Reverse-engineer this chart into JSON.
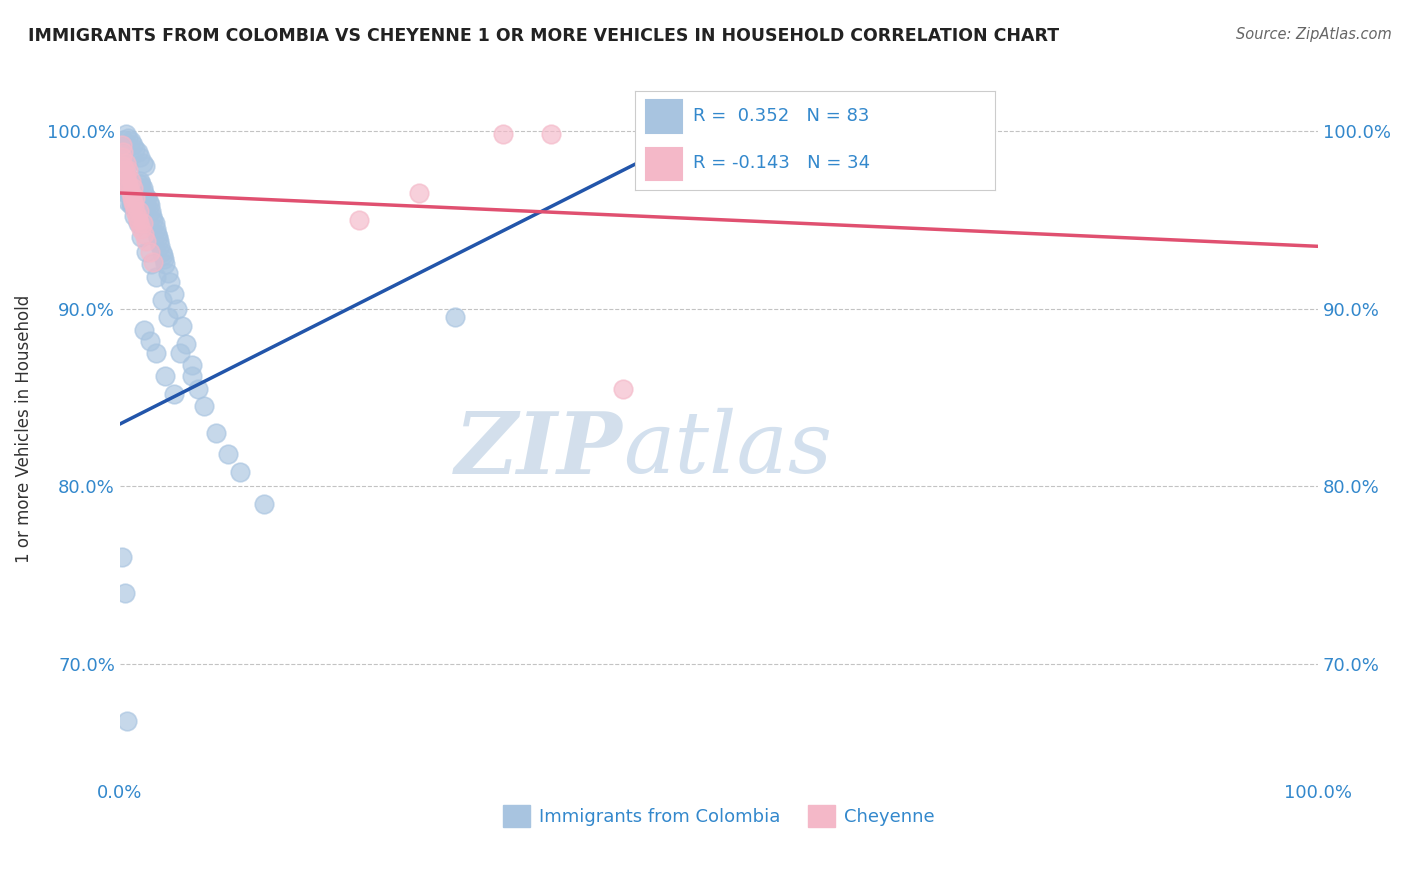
{
  "title": "IMMIGRANTS FROM COLOMBIA VS CHEYENNE 1 OR MORE VEHICLES IN HOUSEHOLD CORRELATION CHART",
  "source": "Source: ZipAtlas.com",
  "ylabel": "1 or more Vehicles in Household",
  "ytick_labels": [
    "70.0%",
    "80.0%",
    "90.0%",
    "100.0%"
  ],
  "ytick_values": [
    0.7,
    0.8,
    0.9,
    1.0
  ],
  "xlim": [
    0.0,
    1.0
  ],
  "ylim": [
    0.635,
    1.03
  ],
  "legend_label1": "Immigrants from Colombia",
  "legend_label2": "Cheyenne",
  "r1": 0.352,
  "n1": 83,
  "r2": -0.143,
  "n2": 34,
  "blue_color": "#a8c4e0",
  "pink_color": "#f4b8c8",
  "blue_line_color": "#2255aa",
  "pink_line_color": "#e05070",
  "watermark_zip": "ZIP",
  "watermark_atlas": "atlas",
  "blue_line_x0": 0.0,
  "blue_line_y0": 0.835,
  "blue_line_x1": 0.5,
  "blue_line_y1": 1.005,
  "pink_line_x0": 0.0,
  "pink_line_y0": 0.965,
  "pink_line_x1": 1.0,
  "pink_line_y1": 0.935,
  "blue_scatter_x": [
    0.002,
    0.003,
    0.004,
    0.005,
    0.006,
    0.007,
    0.008,
    0.009,
    0.01,
    0.011,
    0.012,
    0.013,
    0.014,
    0.015,
    0.016,
    0.017,
    0.018,
    0.019,
    0.02,
    0.021,
    0.022,
    0.023,
    0.024,
    0.025,
    0.026,
    0.027,
    0.028,
    0.029,
    0.03,
    0.031,
    0.032,
    0.033,
    0.034,
    0.035,
    0.036,
    0.037,
    0.038,
    0.04,
    0.042,
    0.045,
    0.048,
    0.052,
    0.055,
    0.06,
    0.065,
    0.07,
    0.08,
    0.09,
    0.1,
    0.12,
    0.003,
    0.005,
    0.007,
    0.009,
    0.011,
    0.013,
    0.015,
    0.017,
    0.019,
    0.021,
    0.003,
    0.005,
    0.007,
    0.009,
    0.012,
    0.015,
    0.018,
    0.022,
    0.026,
    0.03,
    0.035,
    0.04,
    0.05,
    0.06,
    0.28,
    0.02,
    0.025,
    0.03,
    0.038,
    0.045,
    0.002,
    0.004,
    0.006
  ],
  "blue_scatter_y": [
    0.99,
    0.985,
    0.98,
    0.975,
    0.975,
    0.97,
    0.965,
    0.96,
    0.958,
    0.96,
    0.962,
    0.965,
    0.963,
    0.968,
    0.97,
    0.972,
    0.97,
    0.968,
    0.965,
    0.96,
    0.958,
    0.962,
    0.96,
    0.958,
    0.955,
    0.952,
    0.95,
    0.948,
    0.945,
    0.942,
    0.94,
    0.938,
    0.935,
    0.932,
    0.93,
    0.928,
    0.925,
    0.92,
    0.915,
    0.908,
    0.9,
    0.89,
    0.88,
    0.868,
    0.855,
    0.845,
    0.83,
    0.818,
    0.808,
    0.79,
    0.995,
    0.998,
    0.996,
    0.994,
    0.992,
    0.99,
    0.988,
    0.985,
    0.982,
    0.98,
    0.968,
    0.965,
    0.96,
    0.958,
    0.952,
    0.948,
    0.94,
    0.932,
    0.925,
    0.918,
    0.905,
    0.895,
    0.875,
    0.862,
    0.895,
    0.888,
    0.882,
    0.875,
    0.862,
    0.852,
    0.76,
    0.74,
    0.668
  ],
  "pink_scatter_x": [
    0.002,
    0.003,
    0.004,
    0.005,
    0.006,
    0.007,
    0.008,
    0.009,
    0.01,
    0.011,
    0.012,
    0.013,
    0.014,
    0.015,
    0.016,
    0.018,
    0.02,
    0.022,
    0.025,
    0.028,
    0.002,
    0.003,
    0.005,
    0.007,
    0.009,
    0.011,
    0.013,
    0.016,
    0.019,
    0.32,
    0.36,
    0.25,
    0.2,
    0.42
  ],
  "pink_scatter_y": [
    0.985,
    0.98,
    0.978,
    0.975,
    0.972,
    0.97,
    0.968,
    0.965,
    0.962,
    0.96,
    0.958,
    0.955,
    0.952,
    0.95,
    0.948,
    0.945,
    0.942,
    0.938,
    0.932,
    0.926,
    0.992,
    0.988,
    0.982,
    0.978,
    0.972,
    0.968,
    0.962,
    0.955,
    0.948,
    0.998,
    0.998,
    0.965,
    0.95,
    0.855
  ]
}
